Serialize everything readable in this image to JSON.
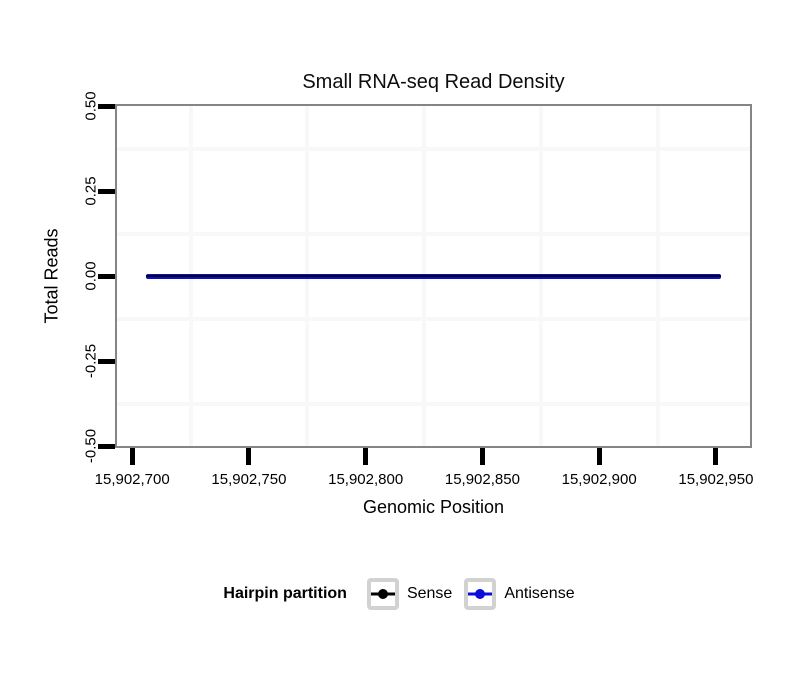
{
  "chart_data": {
    "type": "line",
    "title": "Small RNA-seq Read Density",
    "xlabel": "Genomic Position",
    "ylabel": "Total Reads",
    "xlim": [
      15902693.5,
      15902964.6
    ],
    "ylim": [
      -0.5,
      0.5
    ],
    "grid": "minor-only",
    "x_ticks": [
      {
        "value": 15902700,
        "label": "15,902,700"
      },
      {
        "value": 15902750,
        "label": "15,902,750"
      },
      {
        "value": 15902800,
        "label": "15,902,800"
      },
      {
        "value": 15902850,
        "label": "15,902,850"
      },
      {
        "value": 15902900,
        "label": "15,902,900"
      },
      {
        "value": 15902950,
        "label": "15,902,950"
      }
    ],
    "y_ticks": [
      {
        "value": 0.5,
        "label": "0.50"
      },
      {
        "value": 0.25,
        "label": "0.25"
      },
      {
        "value": 0.0,
        "label": "0.00"
      },
      {
        "value": -0.25,
        "label": "-0.25"
      },
      {
        "value": -0.5,
        "label": "-0.50"
      }
    ],
    "x_minor_gridlines": [
      15902725,
      15902775,
      15902825,
      15902875,
      15902925
    ],
    "y_minor_gridlines": [
      0.375,
      0.125,
      -0.125,
      -0.375
    ],
    "series": [
      {
        "name": "Sense",
        "color": "#000000",
        "x_start": 15902706,
        "x_end": 15902952,
        "y": 0,
        "thickness": 2.5
      },
      {
        "name": "Antisense",
        "color": "#0b0bdd",
        "x_start": 15902706,
        "x_end": 15902952,
        "y": 0,
        "thickness": 5
      }
    ],
    "legend": {
      "title": "Hairpin partition",
      "position": "bottom",
      "entries": [
        {
          "label": "Sense",
          "color": "#000000"
        },
        {
          "label": "Antisense",
          "color": "#0b0bdd"
        }
      ]
    }
  },
  "colors": {
    "panel_border": "#858585",
    "tick": "#000000",
    "minor_grid": "#f8f8f8",
    "legend_key_border": "#d2d2d2",
    "background": "#ffffff"
  }
}
